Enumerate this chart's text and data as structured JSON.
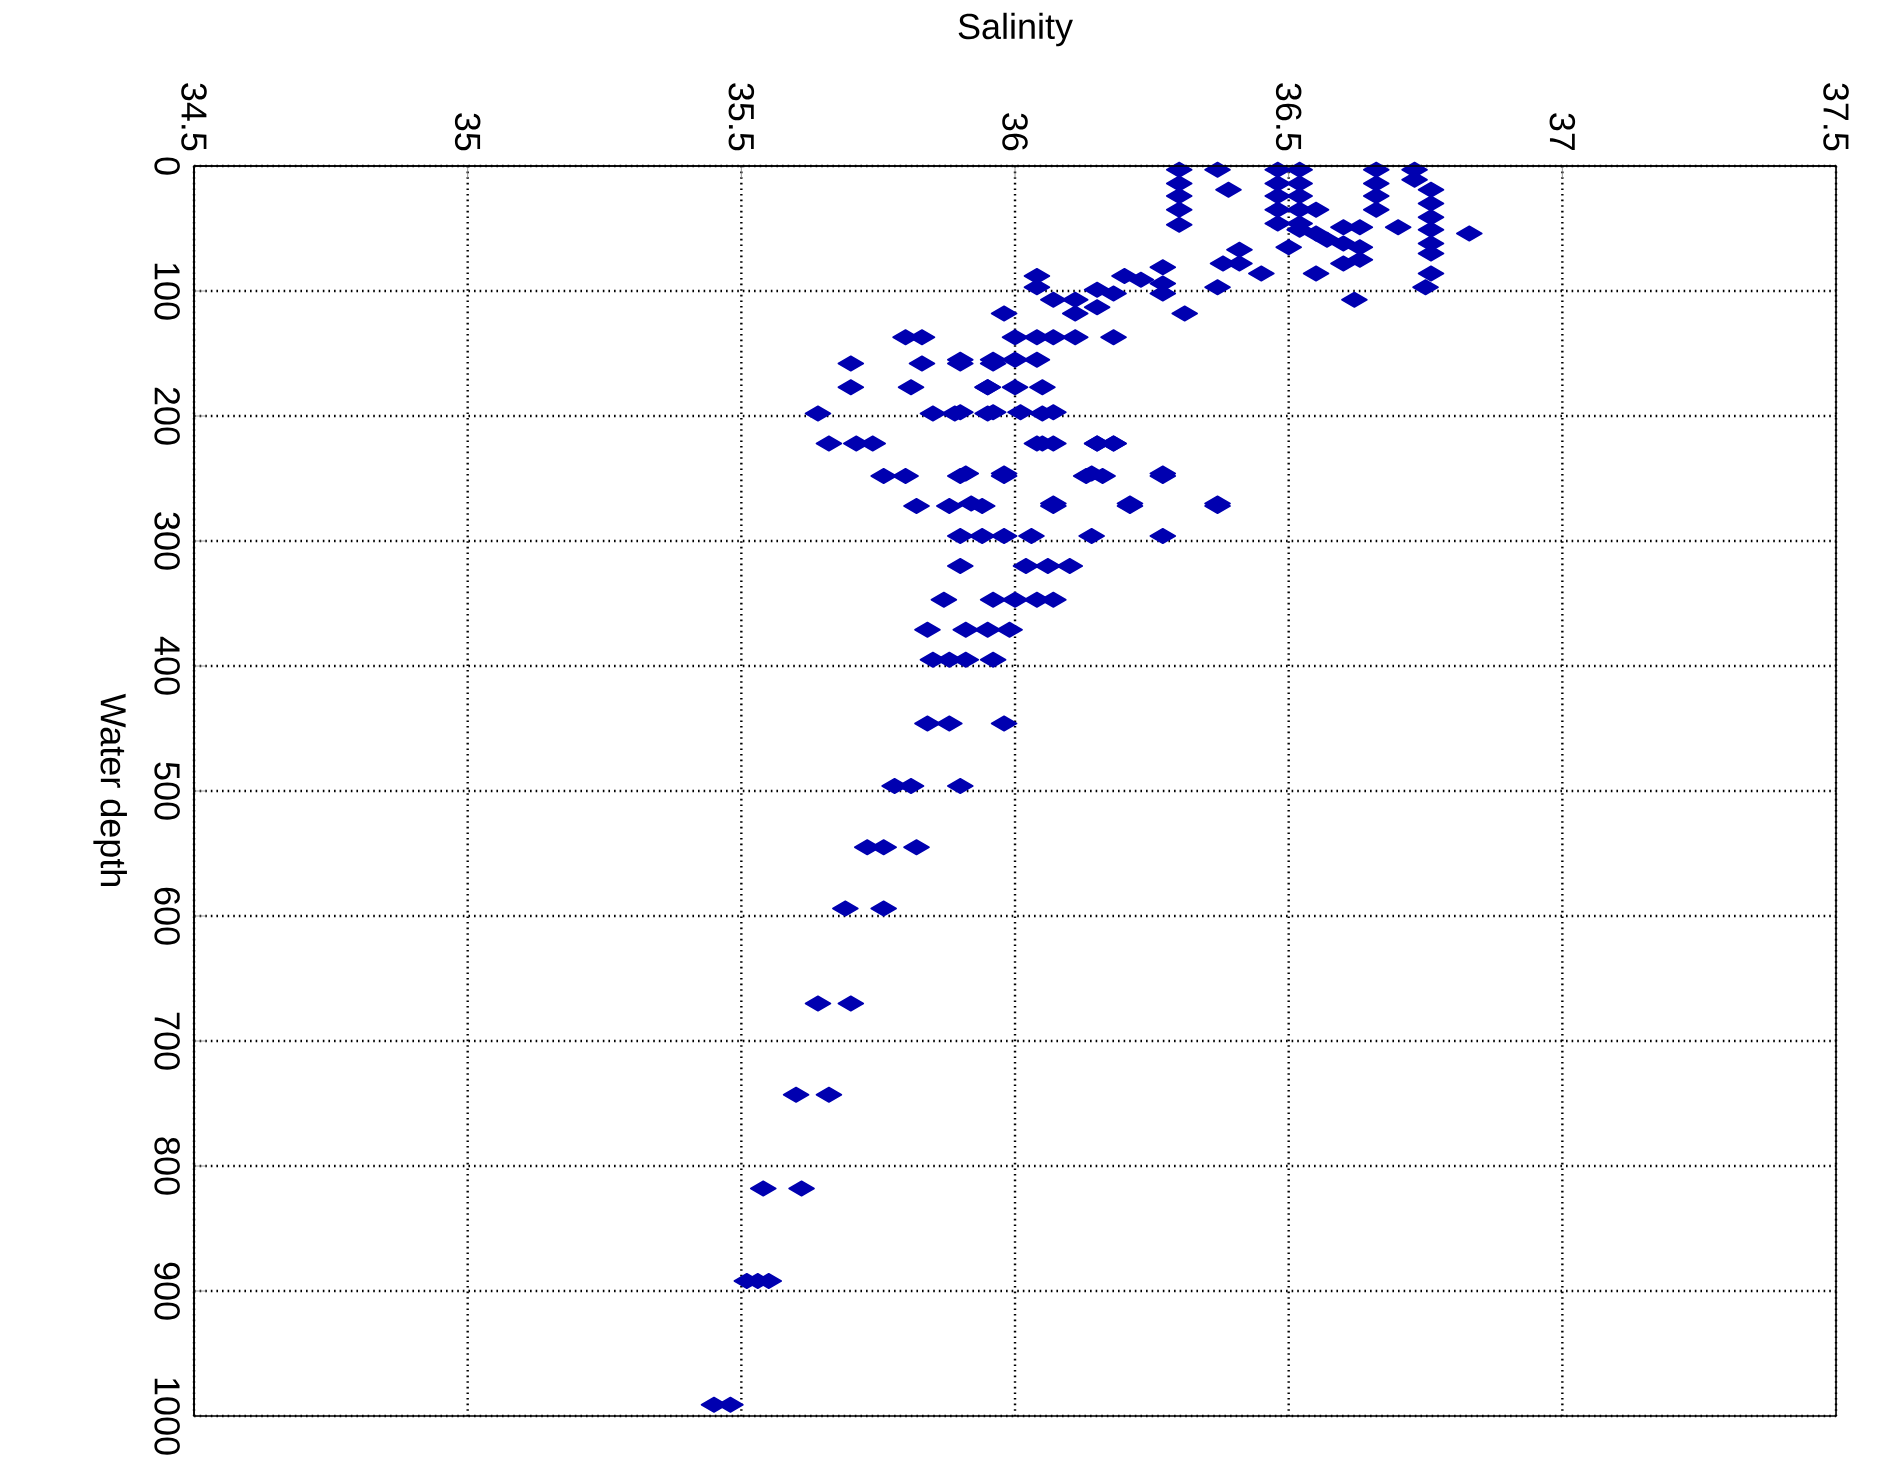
{
  "chart_data": {
    "type": "scatter",
    "xlabel": "Salinity",
    "ylabel": "Water depth",
    "xlim": [
      34.5,
      37.5
    ],
    "xticks": [
      34.5,
      35,
      35.5,
      36,
      36.5,
      37,
      37.5
    ],
    "ylim": [
      1000,
      0
    ],
    "yticks": [
      0,
      100,
      200,
      300,
      400,
      500,
      600,
      700,
      800,
      900,
      1000
    ],
    "grid": true,
    "marker": "diamond",
    "series": [
      {
        "color": "#0000b0",
        "x": [
          36.3,
          36.3,
          36.3,
          36.3,
          36.3,
          36.37,
          36.39,
          36.48,
          36.48,
          36.48,
          36.48,
          36.48,
          36.52,
          36.52,
          36.52,
          36.52,
          36.52,
          36.55,
          36.55,
          36.52,
          36.5,
          36.66,
          36.66,
          36.66,
          36.66,
          36.73,
          36.73,
          36.76,
          36.76,
          36.76,
          36.76,
          36.76,
          36.63,
          36.63,
          36.63,
          36.6,
          36.6,
          36.6,
          36.57,
          36.55,
          36.62,
          36.7,
          36.76,
          36.76,
          36.83,
          36.75,
          36.45,
          36.41,
          36.41,
          36.38,
          36.37,
          36.31,
          36.27,
          36.27,
          36.27,
          36.23,
          36.2,
          36.18,
          36.15,
          36.15,
          36.11,
          36.11,
          36.07,
          36.04,
          36.04,
          35.98,
          36.0,
          36.04,
          36.07,
          36.11,
          36.18,
          35.9,
          35.96,
          36.0,
          36.04,
          35.95,
          36.0,
          36.05,
          35.9,
          35.96,
          36.01,
          36.07,
          36.05,
          36.15,
          36.18,
          35.91,
          35.98,
          36.14,
          36.27,
          35.92,
          36.07,
          36.21,
          36.37,
          35.8,
          35.83,
          35.7,
          35.83,
          35.9,
          35.96,
          35.7,
          35.81,
          35.95,
          35.64,
          35.85,
          35.89,
          35.95,
          36.05,
          35.66,
          35.71,
          35.74,
          36.04,
          36.07,
          36.15,
          36.18,
          35.76,
          35.8,
          35.9,
          35.98,
          36.13,
          36.16,
          36.27,
          35.82,
          35.88,
          35.94,
          36.07,
          36.21,
          36.37,
          35.9,
          35.94,
          35.98,
          36.03,
          36.14,
          36.27,
          35.9,
          36.02,
          36.06,
          36.1,
          35.87,
          35.96,
          36.0,
          36.04,
          36.07,
          35.84,
          35.91,
          35.95,
          35.99,
          35.85,
          35.88,
          35.91,
          35.96,
          35.84,
          35.88,
          35.98,
          35.78,
          35.81,
          35.9,
          35.73,
          35.76,
          35.82,
          35.69,
          35.76,
          35.64,
          35.7,
          35.6,
          35.66,
          35.54,
          35.61,
          35.51,
          35.53,
          35.55,
          35.45,
          35.48
        ],
        "values": [
          3,
          14,
          24,
          35,
          47,
          3,
          19,
          3,
          14,
          24,
          35,
          46,
          3,
          14,
          24,
          35,
          46,
          35,
          54,
          51,
          65,
          3,
          14,
          24,
          35,
          3,
          11,
          19,
          30,
          41,
          51,
          62,
          49,
          65,
          75,
          49,
          62,
          78,
          59,
          86,
          107,
          49,
          70,
          86,
          54,
          97,
          86,
          78,
          67,
          78,
          97,
          118,
          81,
          94,
          102,
          91,
          88,
          102,
          99,
          113,
          107,
          118,
          107,
          88,
          97,
          118,
          137,
          137,
          137,
          137,
          137,
          155,
          155,
          155,
          155,
          177,
          177,
          177,
          197,
          197,
          197,
          197,
          222,
          222,
          222,
          246,
          246,
          246,
          246,
          270,
          270,
          270,
          270,
          137,
          137,
          158,
          158,
          158,
          158,
          177,
          177,
          177,
          198,
          198,
          198,
          198,
          198,
          222,
          222,
          222,
          222,
          222,
          222,
          222,
          248,
          248,
          248,
          248,
          248,
          248,
          248,
          272,
          272,
          272,
          272,
          272,
          272,
          296,
          296,
          296,
          296,
          296,
          296,
          320,
          320,
          320,
          320,
          347,
          347,
          347,
          347,
          347,
          371,
          371,
          371,
          371,
          395,
          395,
          395,
          395,
          446,
          446,
          446,
          496,
          496,
          496,
          545,
          545,
          545,
          594,
          594,
          670,
          670,
          743,
          743,
          818,
          818,
          892,
          892,
          892,
          991,
          991
        ]
      }
    ]
  }
}
